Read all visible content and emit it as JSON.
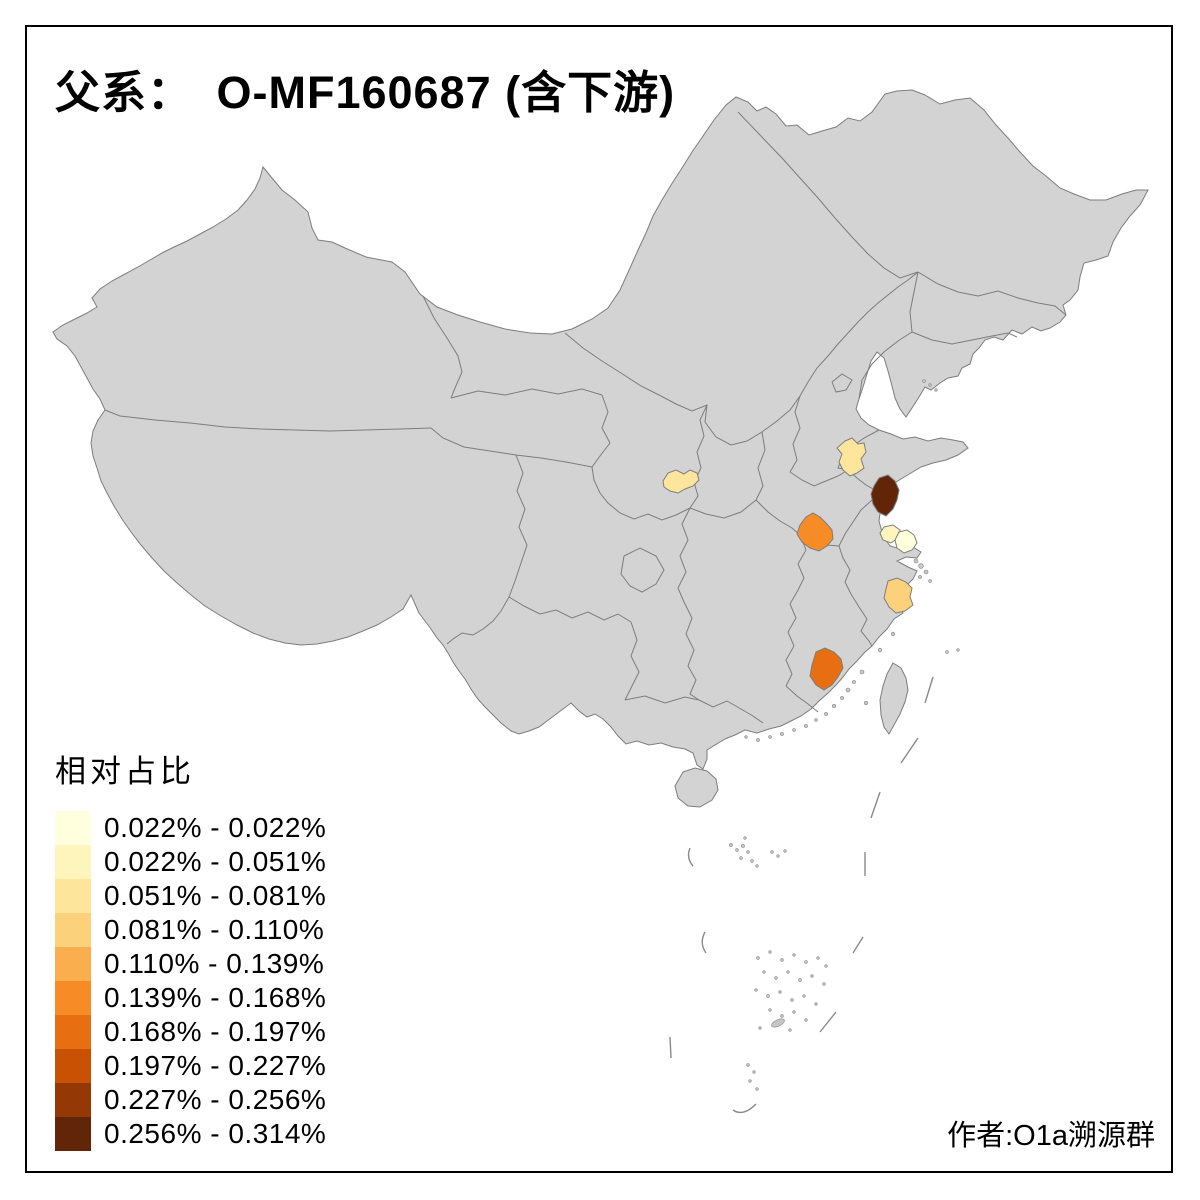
{
  "title": "父系：　O-MF160687 (含下游)",
  "attribution": "作者:O1a溯源群",
  "legend": {
    "title": "相对占比",
    "classes": [
      {
        "label": "0.022% - 0.022%",
        "color": "#FFFEDD"
      },
      {
        "label": "0.022% - 0.051%",
        "color": "#FEF5BD"
      },
      {
        "label": "0.051% - 0.081%",
        "color": "#FDE69C"
      },
      {
        "label": "0.081% - 0.110%",
        "color": "#FCD17B"
      },
      {
        "label": "0.110% - 0.139%",
        "color": "#FAAE4E"
      },
      {
        "label": "0.139% - 0.168%",
        "color": "#F78C27"
      },
      {
        "label": "0.168% - 0.197%",
        "color": "#E76F12"
      },
      {
        "label": "0.197% - 0.227%",
        "color": "#C85103"
      },
      {
        "label": "0.227% - 0.256%",
        "color": "#943806"
      },
      {
        "label": "0.256% - 0.314%",
        "color": "#632508"
      }
    ]
  },
  "map": {
    "land_color": "#d3d3d3",
    "border_color": "#7d7d7d",
    "regions": [
      {
        "id": "shaanxi-guanzhong",
        "class_index": 2
      },
      {
        "id": "shandong-south",
        "class_index": 2
      },
      {
        "id": "jiangsu-yancheng",
        "class_index": 9
      },
      {
        "id": "anhui-hefei",
        "class_index": 5
      },
      {
        "id": "jiangsu-wuxi",
        "class_index": 1
      },
      {
        "id": "jiangsu-suzhou",
        "class_index": 0
      },
      {
        "id": "zhejiang-ningbo",
        "class_index": 3
      },
      {
        "id": "fujian-west",
        "class_index": 6
      }
    ]
  }
}
